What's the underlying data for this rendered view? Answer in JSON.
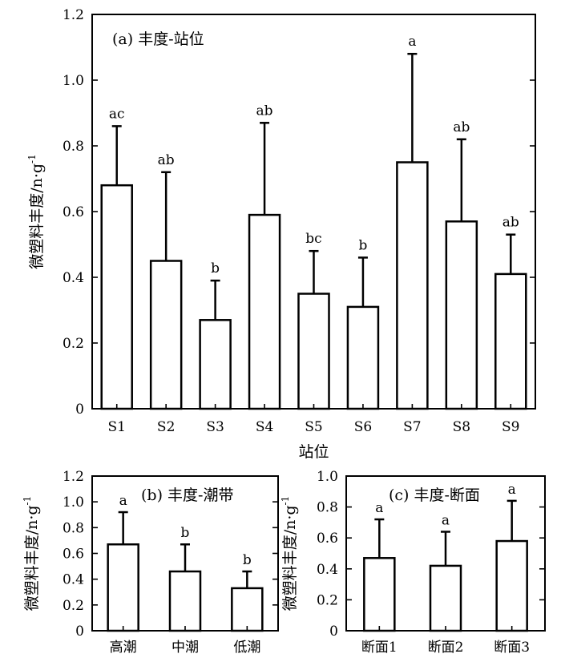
{
  "chart_data": [
    {
      "type": "bar",
      "title": "(a) 丰度-站位",
      "xlabel": "站位",
      "ylabel": "微塑料丰度/n·g",
      "ylabel_sup": "-1",
      "categories": [
        "S1",
        "S2",
        "S3",
        "S4",
        "S5",
        "S6",
        "S7",
        "S8",
        "S9"
      ],
      "values": [
        0.68,
        0.45,
        0.27,
        0.59,
        0.35,
        0.31,
        0.75,
        0.57,
        0.41
      ],
      "error_upper": [
        0.86,
        0.72,
        0.39,
        0.87,
        0.48,
        0.46,
        1.08,
        0.82,
        0.53
      ],
      "significance": [
        "ac",
        "ab",
        "b",
        "ab",
        "bc",
        "b",
        "a",
        "ab",
        "ab"
      ],
      "ylim": [
        0,
        1.2
      ],
      "yticks": [
        "0",
        "0.2",
        "0.4",
        "0.6",
        "0.8",
        "1.0",
        "1.2"
      ],
      "ytick_values": [
        0,
        0.2,
        0.4,
        0.6,
        0.8,
        1.0,
        1.2
      ],
      "grid": false
    },
    {
      "type": "bar",
      "title": "(b) 丰度-潮带",
      "xlabel": "",
      "ylabel": "微塑料丰度/n·g",
      "ylabel_sup": "-1",
      "categories": [
        "高潮",
        "中潮",
        "低潮"
      ],
      "values": [
        0.67,
        0.46,
        0.33
      ],
      "error_upper": [
        0.92,
        0.67,
        0.46
      ],
      "significance": [
        "a",
        "b",
        "b"
      ],
      "ylim": [
        0,
        1.2
      ],
      "yticks": [
        "0",
        "0.2",
        "0.4",
        "0.6",
        "0.8",
        "1.0",
        "1.2"
      ],
      "ytick_values": [
        0,
        0.2,
        0.4,
        0.6,
        0.8,
        1.0,
        1.2
      ],
      "grid": false
    },
    {
      "type": "bar",
      "title": "(c) 丰度-断面",
      "xlabel": "",
      "ylabel": "微塑料丰度/n·g",
      "ylabel_sup": "-1",
      "categories": [
        "断面1",
        "断面2",
        "断面3"
      ],
      "values": [
        0.47,
        0.42,
        0.58
      ],
      "error_upper": [
        0.72,
        0.64,
        0.84
      ],
      "significance": [
        "a",
        "a",
        "a"
      ],
      "ylim": [
        0,
        1.0
      ],
      "yticks": [
        "0",
        "0.2",
        "0.4",
        "0.6",
        "0.8",
        "1.0"
      ],
      "ytick_values": [
        0,
        0.2,
        0.4,
        0.6,
        0.8,
        1.0
      ],
      "grid": false
    }
  ]
}
